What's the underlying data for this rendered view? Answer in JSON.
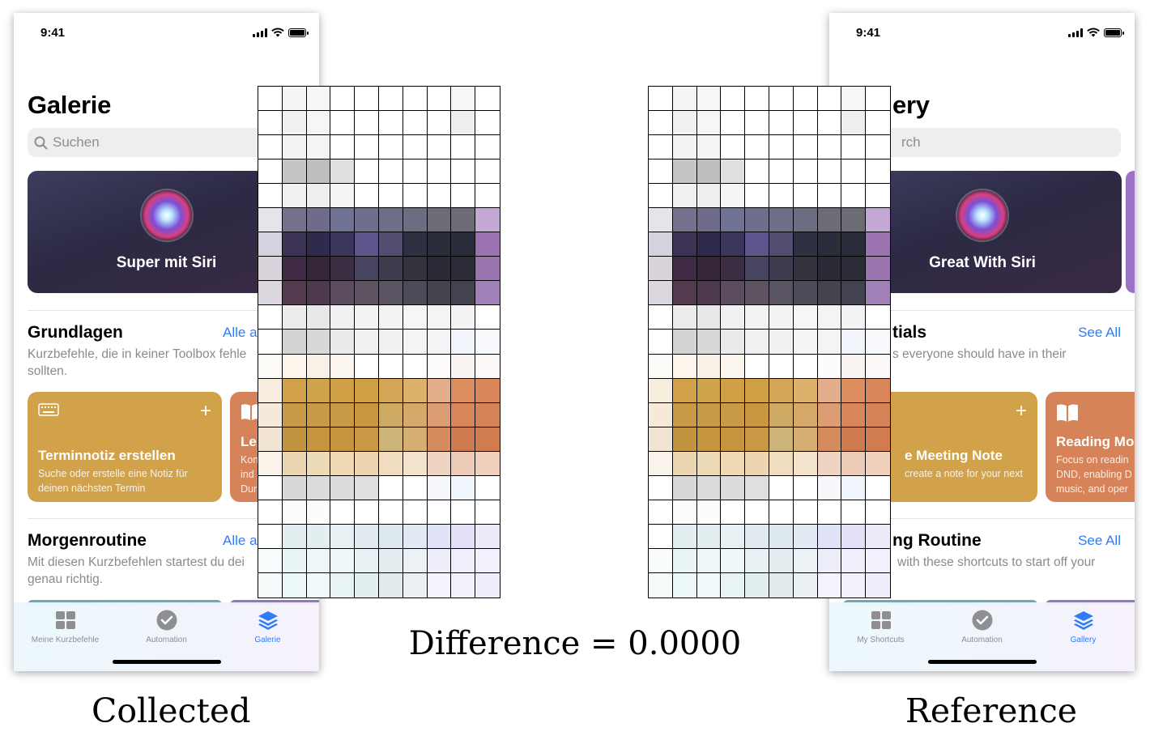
{
  "status": {
    "time": "9:41"
  },
  "collected": {
    "title": "Galerie",
    "search_placeholder": "Suchen",
    "siri_card": "Super mit Siri",
    "section1": {
      "title": "Grundlagen",
      "see_all": "Alle a",
      "desc": "Kurzbefehle, die in keiner Toolbox fehle sollten."
    },
    "card1": {
      "name": "Terminnotiz erstellen",
      "desc": "Suche oder erstelle eine Notiz für deinen nächsten Termin",
      "plus": "+"
    },
    "card2": {
      "name": "Le",
      "desc": "Kon ind Dur"
    },
    "section2": {
      "title": "Morgenroutine",
      "see_all": "Alle a",
      "desc": "Mit diesen Kurzbefehlen startest du dei genau richtig."
    },
    "tabs": [
      "Meine Kurzbefehle",
      "Automation",
      "Galerie"
    ]
  },
  "reference": {
    "title": "ery",
    "search_placeholder": "rch",
    "siri_card": "Great With Siri",
    "section1": {
      "title": "tials",
      "see_all": "See All",
      "desc": "s everyone should have in their"
    },
    "card1": {
      "name": "e Meeting Note",
      "desc": "create a note for your next",
      "plus": "+"
    },
    "card2": {
      "name": "Reading Mo",
      "desc": "Focus on readin DND, enabling D music, and oper"
    },
    "section2": {
      "title": "ng Routine",
      "see_all": "See All",
      "desc": "with these shortcuts to start off your"
    },
    "tabs": [
      "My Shortcuts",
      "Automation",
      "Gallery"
    ]
  },
  "difference_label": "Difference = 0.0000",
  "captions": {
    "left": "Collected",
    "right": "Reference"
  },
  "colors": {
    "accent": "#2f7cf6",
    "siri_card": "#2c2a44",
    "card_yellow": "#d2a24a",
    "card_orange": "#d6835a"
  },
  "grid_colors": [
    [
      "#ffffff",
      "#f4f4f5",
      "#f7f7f8",
      "#ffffff",
      "#ffffff",
      "#ffffff",
      "#ffffff",
      "#ffffff",
      "#f6f6f7",
      "#ffffff"
    ],
    [
      "#ffffff",
      "#f1f1f2",
      "#f6f6f6",
      "#ffffff",
      "#ffffff",
      "#ffffff",
      "#ffffff",
      "#ffffff",
      "#eeeeef",
      "#ffffff"
    ],
    [
      "#ffffff",
      "#f3f3f4",
      "#f4f4f5",
      "#ffffff",
      "#ffffff",
      "#ffffff",
      "#ffffff",
      "#ffffff",
      "#ffffff",
      "#ffffff"
    ],
    [
      "#ffffff",
      "#c5c5c7",
      "#bebec0",
      "#e0e0e2",
      "#ffffff",
      "#ffffff",
      "#ffffff",
      "#ffffff",
      "#ffffff",
      "#ffffff"
    ],
    [
      "#ffffff",
      "#f0f0f1",
      "#efeff0",
      "#f5f5f6",
      "#ffffff",
      "#ffffff",
      "#ffffff",
      "#ffffff",
      "#ffffff",
      "#ffffff"
    ],
    [
      "#e6e4ea",
      "#77708f",
      "#6f6b8d",
      "#6f7293",
      "#6f6e8c",
      "#6c6f86",
      "#6c6e80",
      "#6b6c77",
      "#6d6c75",
      "#c2a8d2"
    ],
    [
      "#d5d1de",
      "#3c3356",
      "#2f2b4d",
      "#3a365c",
      "#5d558c",
      "#524e70",
      "#2f3142",
      "#2c2d3b",
      "#2b2c3a",
      "#9c72b1"
    ],
    [
      "#d9d3dc",
      "#3e2a44",
      "#352639",
      "#3b2d42",
      "#46445f",
      "#3f3c50",
      "#33323d",
      "#2a2b36",
      "#2c2d39",
      "#9a74af"
    ],
    [
      "#dcd6de",
      "#54394f",
      "#4d3a4e",
      "#5b4c60",
      "#5f5261",
      "#5a5361",
      "#4d4b58",
      "#44434e",
      "#424250",
      "#a180b8"
    ],
    [
      "#ffffff",
      "#ececed",
      "#e8e8ea",
      "#f1f1f2",
      "#f3f3f4",
      "#f3f3f4",
      "#f6f6f7",
      "#f4f4f5",
      "#f3f3f6",
      "#ffffff"
    ],
    [
      "#ffffff",
      "#d3d3d5",
      "#d8d8da",
      "#eaeaec",
      "#f0f0f1",
      "#f1f1f2",
      "#f4f4f5",
      "#f4f4f6",
      "#f1f4fb",
      "#f8f9fc"
    ],
    [
      "#fdfbf7",
      "#fbf5ec",
      "#f7f1e8",
      "#fbf6ee",
      "#ffffff",
      "#ffffff",
      "#ffffff",
      "#fdfcfb",
      "#f9f4f1",
      "#fbf8f7"
    ],
    [
      "#f8eee0",
      "#d2a24a",
      "#cfa24c",
      "#cfa045",
      "#cfa046",
      "#d3a757",
      "#dcb16c",
      "#e2ae8c",
      "#dc8e5f",
      "#d8865a"
    ],
    [
      "#f5ead9",
      "#c99a45",
      "#c99a46",
      "#c89a46",
      "#c99742",
      "#ccaa63",
      "#d6a869",
      "#dc9d73",
      "#d8865a",
      "#d58459"
    ],
    [
      "#f2e4d2",
      "#c3943f",
      "#c6953f",
      "#c6943e",
      "#c89844",
      "#cdb47a",
      "#d4ae72",
      "#d48c5f",
      "#cd7b4e",
      "#d07c4f"
    ],
    [
      "#faf3ea",
      "#ead6b1",
      "#eddbb8",
      "#efd9b5",
      "#edd5b1",
      "#f0dcbe",
      "#f4e4cd",
      "#efd4c3",
      "#eecbb8",
      "#f0d0bc"
    ],
    [
      "#ffffff",
      "#d8d8db",
      "#dbdbdd",
      "#dcdcde",
      "#dfdfe1",
      "#ffffff",
      "#ffffff",
      "#f6f8fb",
      "#f0f6fc",
      "#ffffff"
    ],
    [
      "#ffffff",
      "#fbfbfc",
      "#fcfcfc",
      "#ffffff",
      "#ffffff",
      "#ffffff",
      "#ffffff",
      "#ffffff",
      "#ffffff",
      "#ffffff"
    ],
    [
      "#ffffff",
      "#e3eef0",
      "#e2eef0",
      "#e8f0f3",
      "#e1eaee",
      "#dce8ec",
      "#e4eaf3",
      "#e0e2f7",
      "#e3e1f8",
      "#eeeafa"
    ],
    [
      "#f8fcfd",
      "#e9f4f6",
      "#edf6f8",
      "#f0f7f8",
      "#e8f1f3",
      "#e4eef1",
      "#ecf1f6",
      "#eeeefb",
      "#f1eefb",
      "#f3f0fc"
    ],
    [
      "#f5fafb",
      "#ecf7f9",
      "#f1fafb",
      "#e8f3f4",
      "#e2eeef",
      "#e1ebee",
      "#ebf0f3",
      "#f5f3fc",
      "#f3f0fc",
      "#f0ecfc"
    ]
  ]
}
